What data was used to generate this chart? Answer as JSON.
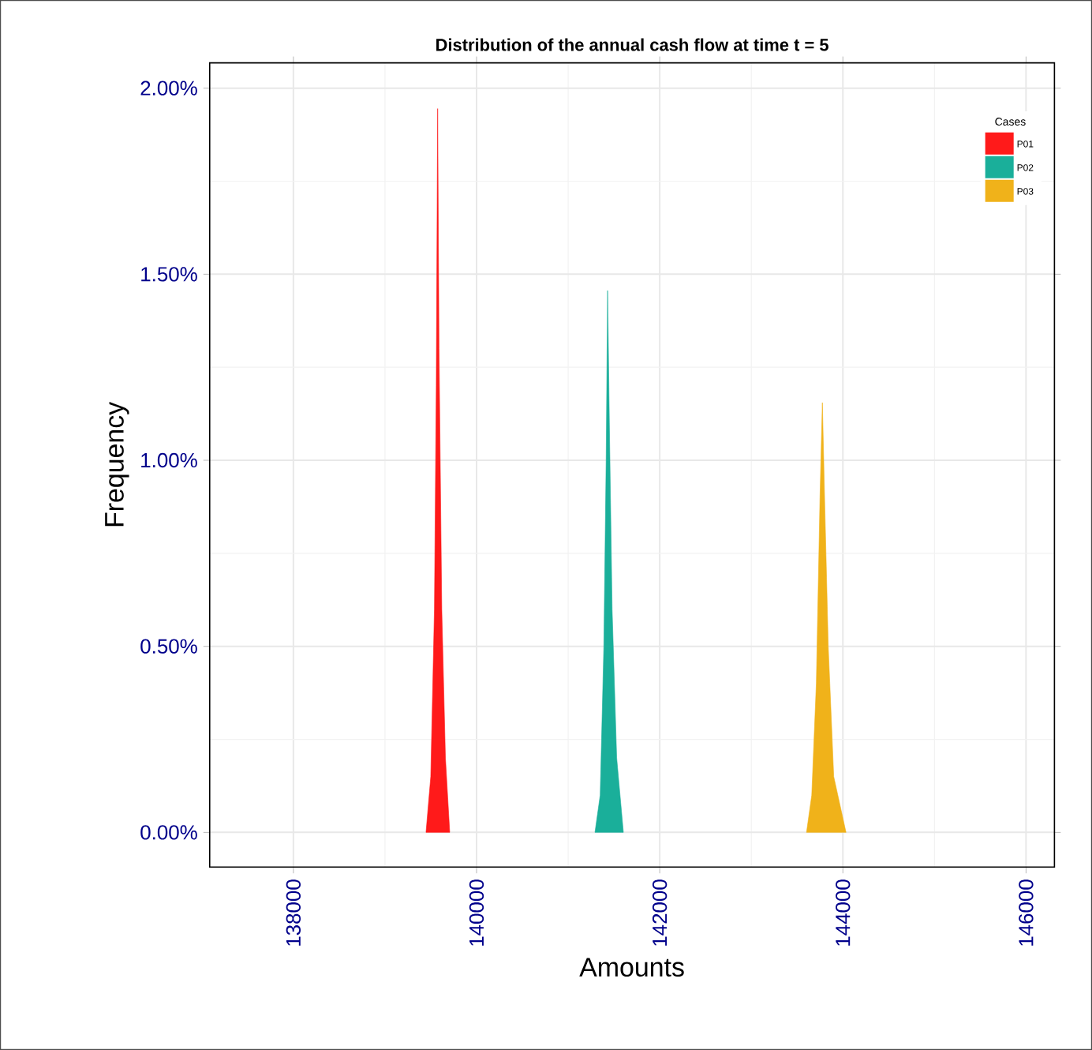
{
  "chart_data": {
    "type": "area",
    "title": "Distribution of the annual cash flow at time t = 5",
    "xlabel": "Amounts",
    "ylabel": "Frequency",
    "legend_title": "Cases",
    "legend": "top right",
    "grid": true,
    "xlim": [
      137086,
      146310
    ],
    "xticks": [
      138000,
      140000,
      142000,
      144000,
      146000
    ],
    "ylim": [
      -0.093,
      2.068
    ],
    "yticks": [
      {
        "value": 0,
        "label": "0.00%"
      },
      {
        "value": 0.5,
        "label": "0.50%"
      },
      {
        "value": 1,
        "label": "1.00%"
      },
      {
        "value": 1.5,
        "label": "1.50%"
      },
      {
        "value": 2,
        "label": "2.00%"
      }
    ],
    "series": [
      {
        "name": "P01",
        "color": "#ff1a1a",
        "x": [
          139448,
          139500,
          139540,
          139560,
          139575,
          139590,
          139620,
          139660,
          139707
        ],
        "values": [
          0,
          0.15,
          0.6,
          1.2,
          1.945,
          1.3,
          0.6,
          0.2,
          0
        ]
      },
      {
        "name": "P02",
        "color": "#1aaf9a",
        "x": [
          141293,
          141350,
          141390,
          141415,
          141431,
          141450,
          141480,
          141530,
          141603
        ],
        "values": [
          0,
          0.1,
          0.5,
          1.0,
          1.456,
          1.1,
          0.6,
          0.2,
          0
        ]
      },
      {
        "name": "P03",
        "color": "#f0b21a",
        "x": [
          143603,
          143660,
          143710,
          143750,
          143776,
          143800,
          143840,
          143900,
          144034
        ],
        "values": [
          0,
          0.1,
          0.4,
          0.9,
          1.155,
          0.9,
          0.5,
          0.15,
          0
        ]
      }
    ]
  }
}
